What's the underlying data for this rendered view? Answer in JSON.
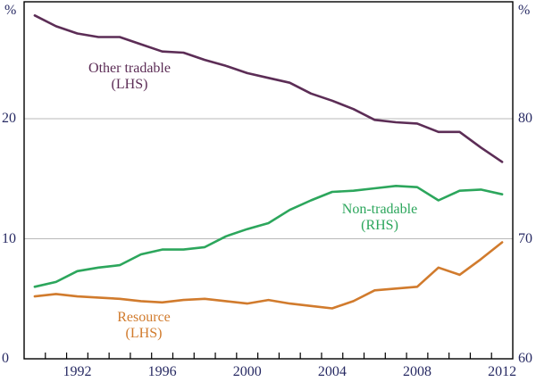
{
  "chart_data": {
    "type": "line",
    "title": "",
    "x": [
      1990,
      1991,
      1992,
      1993,
      1994,
      1995,
      1996,
      1997,
      1998,
      1999,
      2000,
      2001,
      2002,
      2003,
      2004,
      2005,
      2006,
      2007,
      2008,
      2009,
      2010,
      2011,
      2012
    ],
    "x_axis": {
      "range": [
        1990,
        2013
      ],
      "label_years": [
        1992,
        1996,
        2000,
        2004,
        2008,
        2012
      ],
      "minor_ticks_every_year": true
    },
    "left_axis": {
      "unit": "%",
      "ticks": [
        20,
        10,
        0
      ],
      "range": [
        0,
        30
      ]
    },
    "right_axis": {
      "unit": "%",
      "ticks": [
        80,
        70,
        60
      ],
      "range": [
        60,
        90
      ]
    },
    "gridlines_left_values": [
      20,
      10
    ],
    "legend_position": "inline-annotations",
    "grid": "horizontal-only",
    "series": [
      {
        "name": "Other tradable",
        "label_line1": "Other tradable",
        "label_line2": "(LHS)",
        "axis": "left",
        "color": "#5C2D56",
        "label_pos": {
          "x": 145,
          "y": 68
        },
        "values": [
          28.6,
          27.7,
          27.1,
          26.8,
          26.8,
          26.2,
          25.6,
          25.5,
          24.9,
          24.4,
          23.8,
          23.4,
          23.0,
          22.1,
          21.5,
          20.8,
          19.9,
          19.7,
          19.6,
          18.9,
          18.9,
          17.6,
          16.4
        ]
      },
      {
        "name": "Non-tradable",
        "label_line1": "Non-tradable",
        "label_line2": "(RHS)",
        "axis": "right",
        "color": "#2CA65C",
        "label_pos": {
          "x": 425,
          "y": 226
        },
        "values": [
          66.0,
          66.4,
          67.3,
          67.6,
          67.8,
          68.7,
          69.1,
          69.1,
          69.3,
          70.2,
          70.8,
          71.3,
          72.4,
          73.2,
          73.9,
          74.0,
          74.2,
          74.4,
          74.3,
          73.2,
          74.0,
          74.1,
          73.7
        ]
      },
      {
        "name": "Resource",
        "label_line1": "Resource",
        "label_line2": "(LHS)",
        "axis": "left",
        "color": "#D17B2D",
        "label_pos": {
          "x": 161,
          "y": 347
        },
        "values": [
          5.2,
          5.4,
          5.2,
          5.1,
          5.0,
          4.8,
          4.7,
          4.9,
          5.0,
          4.8,
          4.6,
          4.9,
          4.6,
          4.4,
          4.2,
          4.8,
          5.7,
          5.85,
          6.0,
          7.6,
          7.0,
          8.3,
          9.7
        ]
      }
    ],
    "colors": {
      "frame": "#000000",
      "gridline": "#b9b9b9",
      "tick_text": "#272a63"
    }
  }
}
